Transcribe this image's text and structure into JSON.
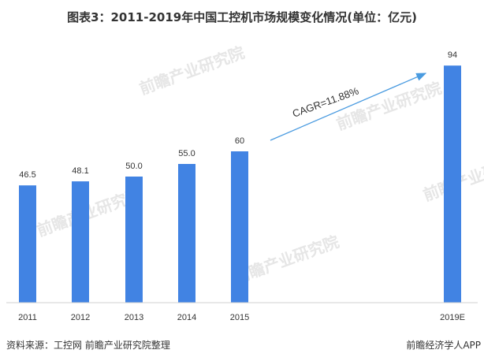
{
  "chart_data": {
    "type": "bar",
    "title": "图表3：2011-2019年中国工控机市场规模变化情况(单位：亿元)",
    "categories": [
      "2011",
      "2012",
      "2013",
      "2014",
      "2015",
      "2019E"
    ],
    "values": [
      46.5,
      48.1,
      50.0,
      55.0,
      60,
      94
    ],
    "value_labels": [
      "46.5",
      "48.1",
      "50.0",
      "55.0",
      "60",
      "94"
    ],
    "xlabel": "",
    "ylabel": "",
    "ylim": [
      0,
      100
    ],
    "grid": false,
    "bar_color": "#4183e3",
    "annotation": {
      "text": "CAGR=11.88%",
      "arrow_color": "#4a9be0"
    }
  },
  "footer": {
    "source": "资料来源：工控网 前瞻产业研究院整理",
    "brand": "前瞻经济学人APP"
  },
  "watermark": {
    "text": "前瞻产业研究院"
  }
}
